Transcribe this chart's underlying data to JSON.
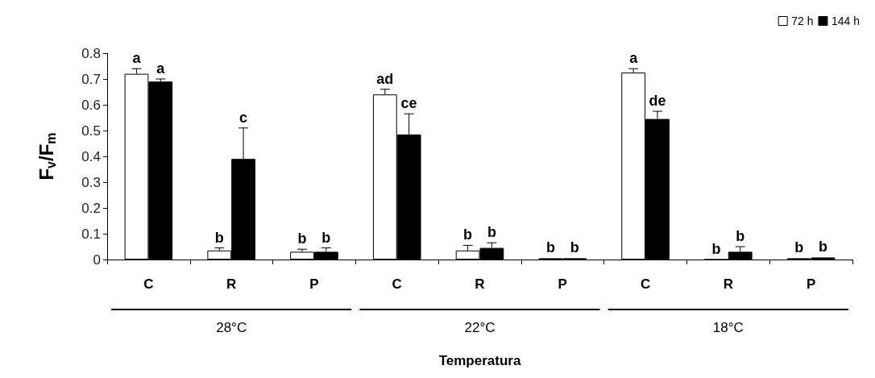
{
  "chart_data": {
    "type": "bar",
    "ylabel": "F$_{v}$/F$_{m}$",
    "xlabel": "Temperatura",
    "categories": [
      "C",
      "R",
      "P",
      "C",
      "R",
      "P",
      "C",
      "R",
      "P"
    ],
    "series": [
      {
        "name": "72 h",
        "color": "#ffffff",
        "values": [
          0.72,
          0.035,
          0.03,
          0.64,
          0.035,
          0.005,
          0.725,
          0,
          0.005
        ],
        "errors": [
          0.02,
          0.01,
          0.01,
          0.02,
          0.02,
          null,
          0.015,
          null,
          null
        ],
        "value_labels": [
          "a",
          "b",
          "b",
          "ad",
          "b",
          "b",
          "a",
          "b",
          "b"
        ]
      },
      {
        "name": "144 h",
        "color": "#000000",
        "values": [
          0.69,
          0.39,
          0.03,
          0.485,
          0.045,
          0.005,
          0.545,
          0.03,
          0.008
        ],
        "errors": [
          0.01,
          0.12,
          0.015,
          0.08,
          0.02,
          null,
          0.03,
          0.02,
          null
        ],
        "value_labels": [
          "a",
          "c",
          "b",
          "ce",
          "b",
          "b",
          "de",
          "b",
          "b"
        ]
      }
    ],
    "ylim": [
      0,
      0.8
    ],
    "yticks": [
      0,
      0.1,
      0.2,
      0.3,
      0.4,
      0.5,
      0.6,
      0.7,
      0.8
    ],
    "grid": false,
    "legend": "top right",
    "annotations": [
      "28°C",
      "22°C",
      "18°C"
    ]
  }
}
